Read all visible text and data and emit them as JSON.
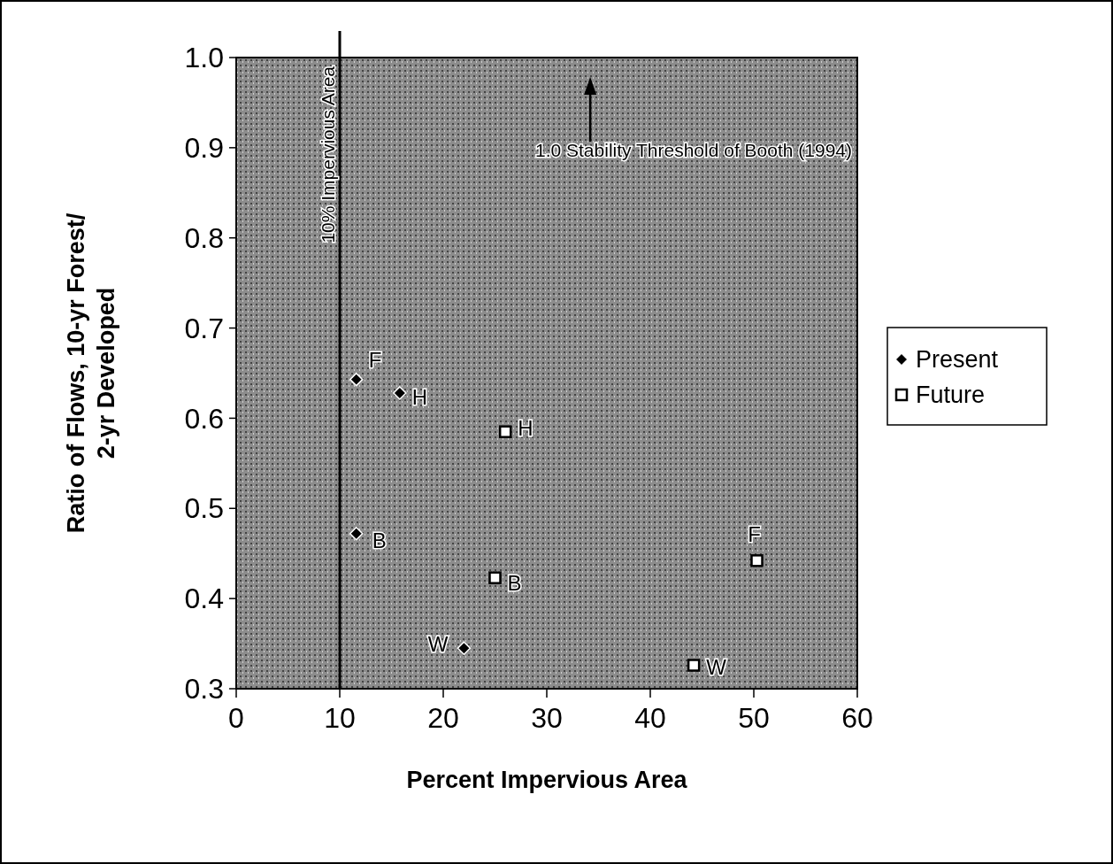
{
  "chart_data": {
    "type": "scatter",
    "xlabel": "Percent Impervious Area",
    "ylabel": "Ratio of Flows, 10-yr Forest/\n2-yr Developed",
    "xlim": [
      0,
      60
    ],
    "xticks": [
      0,
      10,
      20,
      30,
      40,
      50,
      60
    ],
    "ylim": [
      0.3,
      1.0
    ],
    "yticks": [
      {
        "value": 0.3,
        "label": "0.3"
      },
      {
        "value": 0.4,
        "label": "0.4"
      },
      {
        "value": 0.5,
        "label": "0.5"
      },
      {
        "value": 0.6,
        "label": "0.6"
      },
      {
        "value": 0.7,
        "label": "0.7"
      },
      {
        "value": 0.8,
        "label": "0.8"
      },
      {
        "value": 0.9,
        "label": "0.9"
      },
      {
        "value": 1.0,
        "label": "1.0"
      }
    ],
    "series": [
      {
        "name": "Present",
        "color": "#000000",
        "marker": "diamond",
        "x": [
          11.6,
          15.8,
          11.6,
          22.0
        ],
        "values": [
          0.643,
          0.628,
          0.472,
          0.345
        ]
      },
      {
        "name": "Future",
        "color": "#000000",
        "marker": "square",
        "x": [
          26.0,
          25.0,
          50.3,
          44.2
        ],
        "values": [
          0.585,
          0.423,
          0.442,
          0.326
        ]
      }
    ],
    "ref_lines": [
      {
        "axis": "x",
        "value": 10,
        "label": "10% Impervious Area",
        "color": "#000000"
      }
    ],
    "annotations": [
      {
        "text": "F",
        "x": 11.6,
        "y": 0.643
      },
      {
        "text": "H",
        "x": 15.8,
        "y": 0.628
      },
      {
        "text": "B",
        "x": 11.6,
        "y": 0.472
      },
      {
        "text": "W",
        "x": 22.0,
        "y": 0.345
      },
      {
        "text": "H",
        "x": 26.0,
        "y": 0.585
      },
      {
        "text": "B",
        "x": 25.0,
        "y": 0.423
      },
      {
        "text": "F",
        "x": 50.3,
        "y": 0.442
      },
      {
        "text": "W",
        "x": 44.2,
        "y": 0.326
      },
      "1.0 Stability Threshold of Booth (1994)"
    ],
    "grid": false,
    "legend": "right"
  }
}
